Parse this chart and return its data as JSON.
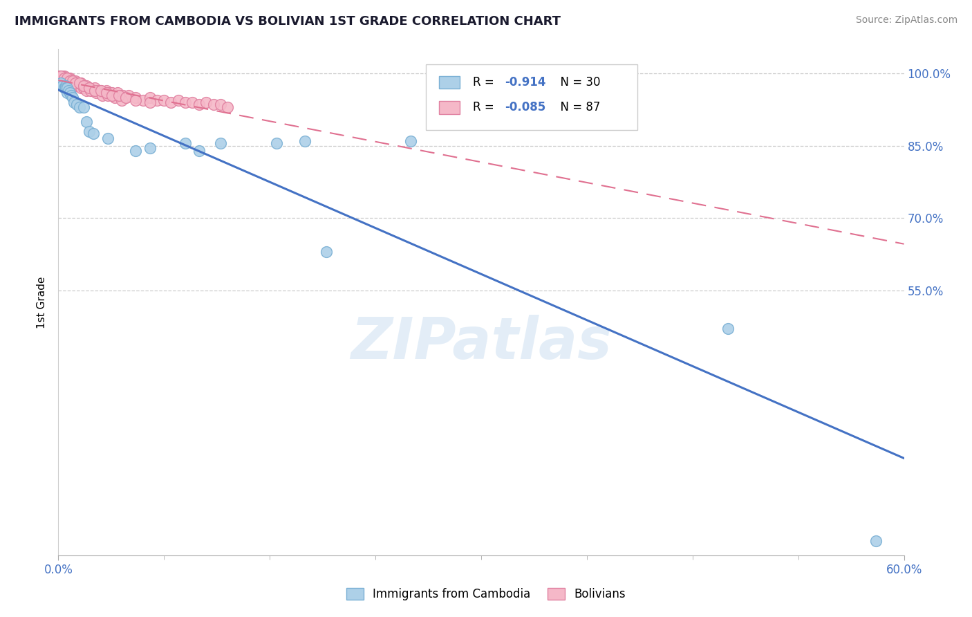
{
  "title": "IMMIGRANTS FROM CAMBODIA VS BOLIVIAN 1ST GRADE CORRELATION CHART",
  "source_text": "Source: ZipAtlas.com",
  "ylabel": "1st Grade",
  "watermark": "ZIPatlas",
  "xlim": [
    0.0,
    0.6
  ],
  "ylim": [
    0.0,
    1.05
  ],
  "ytick_positions": [
    0.55,
    0.7,
    0.85,
    1.0
  ],
  "ytick_labels": [
    "55.0%",
    "70.0%",
    "85.0%",
    "100.0%"
  ],
  "grid_yticks": [
    0.55,
    0.7,
    0.85,
    1.0
  ],
  "background_color": "#ffffff",
  "cambodia_color": "#add0e8",
  "cambodia_edge_color": "#7ab0d4",
  "bolivian_color": "#f5b8c8",
  "bolivian_edge_color": "#e080a0",
  "cambodia_line_color": "#4472c4",
  "bolivian_line_color": "#e07090",
  "R_cambodia": -0.914,
  "N_cambodia": 30,
  "R_bolivian": -0.085,
  "N_bolivian": 87,
  "legend_label_cambodia": "Immigrants from Cambodia",
  "legend_label_bolivian": "Bolivians",
  "cambodia_x": [
    0.002,
    0.003,
    0.004,
    0.005,
    0.005,
    0.006,
    0.006,
    0.007,
    0.008,
    0.009,
    0.01,
    0.011,
    0.013,
    0.015,
    0.018,
    0.02,
    0.022,
    0.025,
    0.035,
    0.055,
    0.065,
    0.09,
    0.1,
    0.115,
    0.155,
    0.175,
    0.19,
    0.25,
    0.475,
    0.58
  ],
  "cambodia_y": [
    0.98,
    0.975,
    0.97,
    0.975,
    0.97,
    0.96,
    0.97,
    0.965,
    0.96,
    0.955,
    0.95,
    0.94,
    0.935,
    0.93,
    0.93,
    0.9,
    0.88,
    0.875,
    0.865,
    0.84,
    0.845,
    0.855,
    0.84,
    0.855,
    0.855,
    0.86,
    0.63,
    0.86,
    0.47,
    0.03
  ],
  "bolivian_x": [
    0.001,
    0.002,
    0.003,
    0.004,
    0.005,
    0.006,
    0.007,
    0.008,
    0.009,
    0.01,
    0.011,
    0.012,
    0.013,
    0.014,
    0.015,
    0.016,
    0.017,
    0.018,
    0.019,
    0.02,
    0.022,
    0.024,
    0.026,
    0.028,
    0.03,
    0.032,
    0.034,
    0.036,
    0.038,
    0.04,
    0.042,
    0.044,
    0.046,
    0.048,
    0.05,
    0.055,
    0.06,
    0.065,
    0.07,
    0.075,
    0.08,
    0.085,
    0.09,
    0.095,
    0.1,
    0.105,
    0.11,
    0.115,
    0.12,
    0.001,
    0.002,
    0.003,
    0.004,
    0.005,
    0.006,
    0.007,
    0.008,
    0.009,
    0.01,
    0.012,
    0.014,
    0.016,
    0.018,
    0.02,
    0.023,
    0.027,
    0.031,
    0.035,
    0.04,
    0.045,
    0.002,
    0.004,
    0.006,
    0.008,
    0.01,
    0.012,
    0.015,
    0.018,
    0.022,
    0.026,
    0.03,
    0.034,
    0.038,
    0.043,
    0.048,
    0.055,
    0.065
  ],
  "bolivian_y": [
    0.995,
    0.995,
    0.99,
    0.995,
    0.99,
    0.99,
    0.985,
    0.99,
    0.985,
    0.985,
    0.98,
    0.985,
    0.98,
    0.98,
    0.975,
    0.98,
    0.975,
    0.975,
    0.97,
    0.975,
    0.97,
    0.965,
    0.97,
    0.965,
    0.965,
    0.96,
    0.965,
    0.96,
    0.96,
    0.955,
    0.96,
    0.955,
    0.955,
    0.95,
    0.955,
    0.95,
    0.945,
    0.95,
    0.945,
    0.945,
    0.94,
    0.945,
    0.94,
    0.94,
    0.935,
    0.94,
    0.935,
    0.935,
    0.93,
    0.995,
    0.99,
    0.995,
    0.99,
    0.99,
    0.985,
    0.99,
    0.985,
    0.985,
    0.98,
    0.975,
    0.975,
    0.97,
    0.97,
    0.965,
    0.965,
    0.96,
    0.955,
    0.955,
    0.95,
    0.945,
    0.995,
    0.99,
    0.99,
    0.985,
    0.985,
    0.98,
    0.98,
    0.975,
    0.97,
    0.965,
    0.965,
    0.96,
    0.955,
    0.955,
    0.95,
    0.945,
    0.94
  ]
}
